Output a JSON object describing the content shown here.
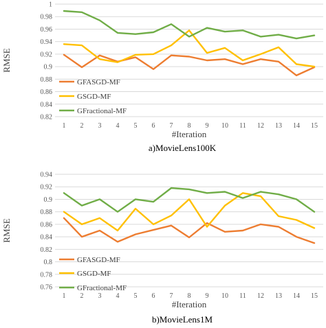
{
  "chart_data": [
    {
      "type": "line",
      "caption": "a)MovieLens100K",
      "xlabel": "#Iteration",
      "ylabel": "RMSE",
      "x": [
        1,
        2,
        3,
        4,
        5,
        6,
        7,
        8,
        9,
        10,
        11,
        12,
        13,
        14,
        15
      ],
      "ylim": [
        0.82,
        1.0
      ],
      "yticks": [
        0.82,
        0.84,
        0.86,
        0.88,
        0.9,
        0.92,
        0.94,
        0.96,
        0.98,
        1
      ],
      "grid": true,
      "legend_position": "bottom-left",
      "series": [
        {
          "name": "GFASGD-MF",
          "color": "#ed7d31",
          "values": [
            0.919,
            0.899,
            0.918,
            0.908,
            0.915,
            0.896,
            0.918,
            0.916,
            0.91,
            0.912,
            0.904,
            0.912,
            0.908,
            0.886,
            0.899
          ]
        },
        {
          "name": "GSGD-MF",
          "color": "#ffc000",
          "values": [
            0.936,
            0.934,
            0.912,
            0.907,
            0.919,
            0.92,
            0.934,
            0.958,
            0.922,
            0.93,
            0.91,
            0.92,
            0.931,
            0.904,
            0.9
          ]
        },
        {
          "name": "GFractional-MF",
          "color": "#70ad47",
          "values": [
            0.989,
            0.987,
            0.974,
            0.954,
            0.952,
            0.955,
            0.968,
            0.948,
            0.962,
            0.956,
            0.958,
            0.948,
            0.951,
            0.945,
            0.95
          ]
        }
      ]
    },
    {
      "type": "line",
      "caption": "b)MovieLens1M",
      "xlabel": "#Iteration",
      "ylabel": "RMSE",
      "x": [
        1,
        2,
        3,
        4,
        5,
        6,
        7,
        8,
        9,
        10,
        11,
        12,
        13,
        14,
        15
      ],
      "ylim": [
        0.76,
        0.94
      ],
      "yticks": [
        0.76,
        0.78,
        0.8,
        0.82,
        0.84,
        0.86,
        0.88,
        0.9,
        0.92,
        0.94
      ],
      "grid": true,
      "legend_position": "bottom-left",
      "series": [
        {
          "name": "GFASGD-MF",
          "color": "#ed7d31",
          "values": [
            0.87,
            0.84,
            0.85,
            0.832,
            0.844,
            0.851,
            0.858,
            0.839,
            0.862,
            0.848,
            0.85,
            0.86,
            0.856,
            0.84,
            0.83
          ]
        },
        {
          "name": "GSGD-MF",
          "color": "#ffc000",
          "values": [
            0.88,
            0.86,
            0.87,
            0.85,
            0.885,
            0.86,
            0.874,
            0.9,
            0.856,
            0.89,
            0.91,
            0.905,
            0.873,
            0.867,
            0.854
          ]
        },
        {
          "name": "GFractional-MF",
          "color": "#70ad47",
          "values": [
            0.91,
            0.89,
            0.9,
            0.88,
            0.9,
            0.896,
            0.918,
            0.916,
            0.91,
            0.912,
            0.902,
            0.912,
            0.908,
            0.9,
            0.88
          ]
        }
      ]
    }
  ]
}
